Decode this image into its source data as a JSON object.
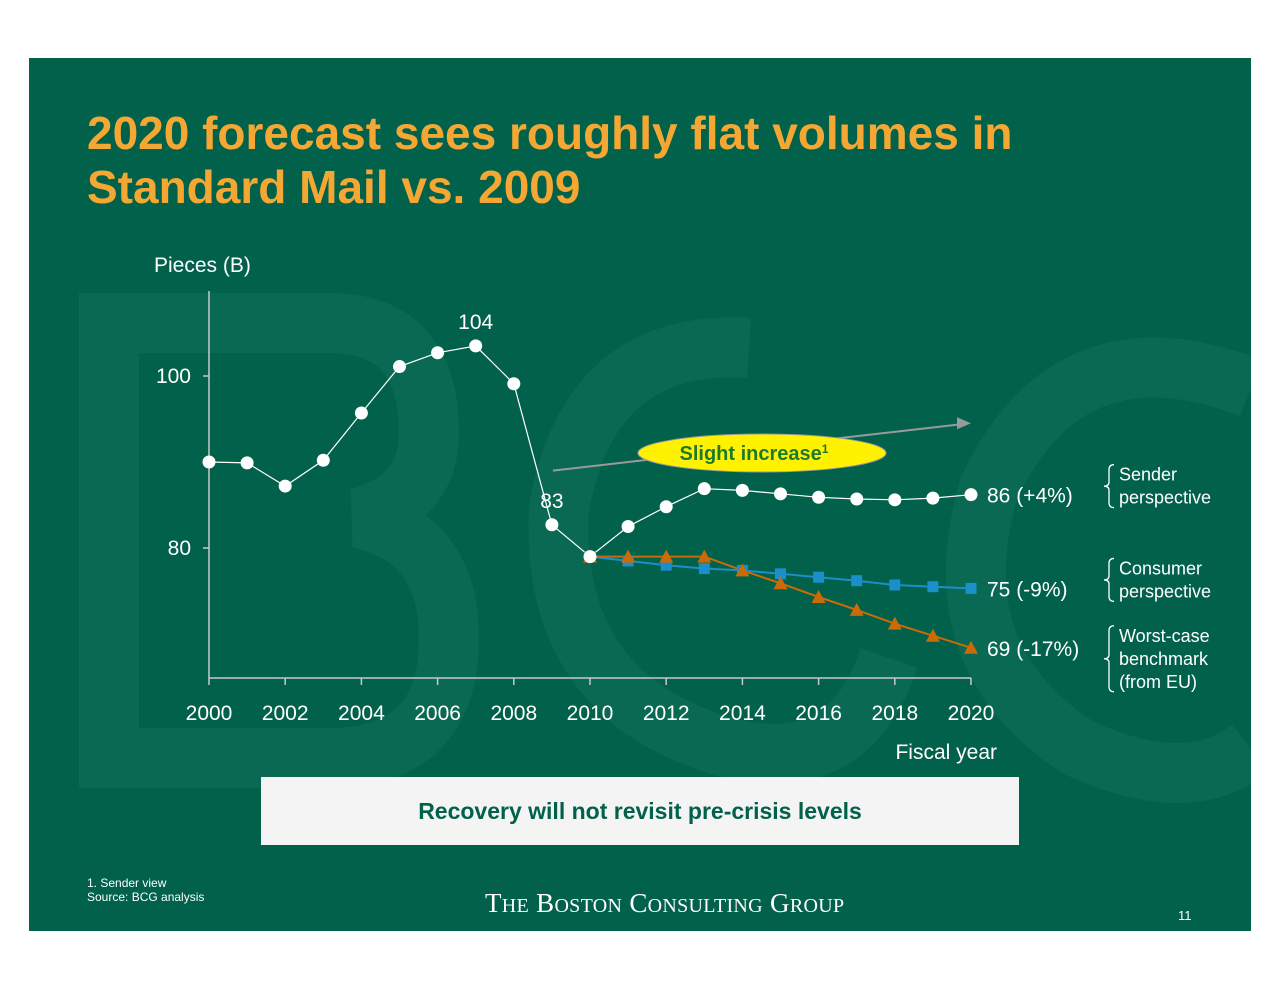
{
  "title": "2020 forecast sees roughly flat volumes in Standard Mail vs. 2009",
  "colors": {
    "background": "#02614b",
    "title": "#f5a733",
    "sender": "#ffffff",
    "consumer": "#1a8fc9",
    "worst_case": "#cc6a08",
    "callout_fill": "#fff200",
    "callout_text": "#1d7a2c"
  },
  "chart_data": {
    "type": "line",
    "ylabel": "Pieces (B)",
    "xlabel": "Fiscal year",
    "xlim": [
      2000,
      2020
    ],
    "ylim": [
      65,
      110
    ],
    "x_ticks": [
      2000,
      2002,
      2004,
      2006,
      2008,
      2010,
      2012,
      2014,
      2016,
      2018,
      2020
    ],
    "y_ticks": [
      80,
      100
    ],
    "grid": false,
    "series": [
      {
        "key": "history",
        "color": "#ffffff",
        "marker": "circle",
        "x": [
          2000,
          2001,
          2002,
          2003,
          2004,
          2005,
          2006,
          2007,
          2008,
          2009
        ],
        "values": [
          90,
          89.9,
          87.2,
          90.2,
          95.7,
          101.1,
          102.7,
          103.5,
          99.1,
          82.7
        ]
      },
      {
        "key": "sender",
        "color": "#ffffff",
        "marker": "circle",
        "end_label": "86 (+4%)",
        "brace_label": [
          "Sender",
          "perspective"
        ],
        "x": [
          2010,
          2011,
          2012,
          2013,
          2014,
          2015,
          2016,
          2017,
          2018,
          2019,
          2020
        ],
        "values": [
          79,
          82.5,
          84.8,
          86.9,
          86.7,
          86.3,
          85.9,
          85.7,
          85.6,
          85.8,
          86.2
        ]
      },
      {
        "key": "consumer",
        "color": "#1a8fc9",
        "marker": "square",
        "end_label": "75 (-9%)",
        "brace_label": [
          "Consumer",
          "perspective"
        ],
        "x": [
          2010,
          2011,
          2012,
          2013,
          2014,
          2015,
          2016,
          2017,
          2018,
          2019,
          2020
        ],
        "values": [
          79,
          78.5,
          78,
          77.6,
          77.4,
          77,
          76.6,
          76.2,
          75.7,
          75.5,
          75.3
        ]
      },
      {
        "key": "worst_case",
        "color": "#cc6a08",
        "marker": "triangle",
        "end_label": "69 (-17%)",
        "brace_label": [
          "Worst-case",
          "benchmark",
          "(from EU)"
        ],
        "x": [
          2010,
          2011,
          2012,
          2013,
          2014,
          2015,
          2016,
          2017,
          2018,
          2019,
          2020
        ],
        "values": [
          79,
          79,
          79,
          79,
          77.4,
          75.9,
          74.3,
          72.8,
          71.2,
          69.8,
          68.4
        ]
      }
    ],
    "annotations": [
      {
        "text": "104",
        "x": 2007
      },
      {
        "text": "83",
        "x": 2009
      }
    ],
    "callout": {
      "text": "Slight increase",
      "superscript": "1",
      "arrow_from": [
        2009,
        89
      ],
      "arrow_to": [
        2020,
        94.5
      ]
    }
  },
  "banner": "Recovery will not revisit pre-crisis levels",
  "footnotes": [
    "1. Sender view",
    "Source: BCG analysis"
  ],
  "logo": "The Boston Consulting Group",
  "page_number": "11"
}
